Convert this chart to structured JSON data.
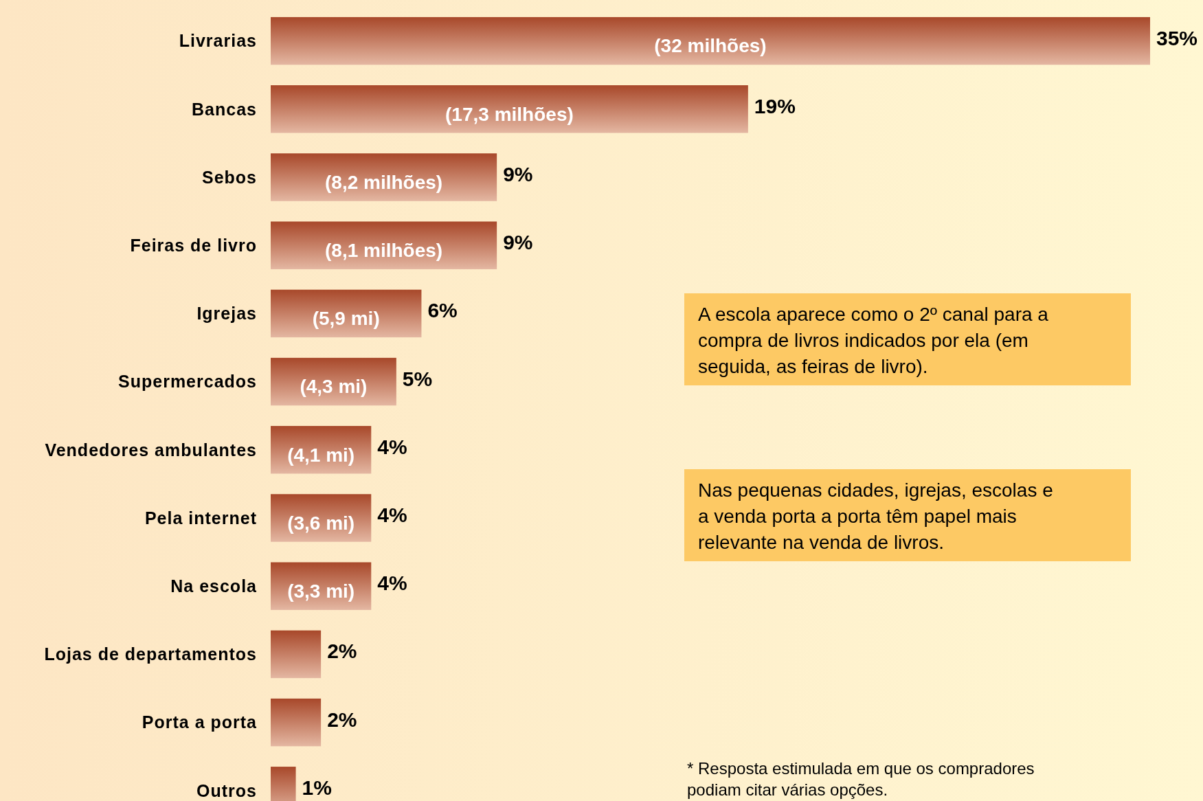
{
  "chart_data": {
    "type": "bar",
    "orientation": "horizontal",
    "tick_labels": "y",
    "categories": [
      "Livrarias",
      "Bancas",
      "Sebos",
      "Feiras de livro",
      "Igrejas",
      "Supermercados",
      "Vendedores ambulantes",
      "Pela internet",
      "Na escola",
      "Lojas de departamentos",
      "Porta a porta",
      "Outros"
    ],
    "values": [
      35,
      19,
      9,
      9,
      6,
      5,
      4,
      4,
      4,
      2,
      2,
      1
    ],
    "value_labels": [
      "35%",
      "19%",
      "9%",
      "9%",
      "6%",
      "5%",
      "4%",
      "4%",
      "4%",
      "2%",
      "2%",
      "1%"
    ],
    "color": "#a8482a",
    "annotations": [
      "(32 milhões)",
      "(17,3 milhões)",
      "(8,2 milhões)",
      "(8,1 milhões)",
      "(5,9 mi)",
      "(4,3 mi)",
      "(4,1 mi)",
      "(3,6 mi)",
      "(3,3 mi)",
      "A escola aparece como o 2º canal para a compra de livros indicados por ela (em seguida, as feiras de livro).",
      "Nas pequenas cidades, igrejas, escolas e a venda porta a porta têm papel mais relevante na venda de livros.",
      "* Resposta estimulada em que os compradores podiam citar várias opções."
    ]
  }
}
